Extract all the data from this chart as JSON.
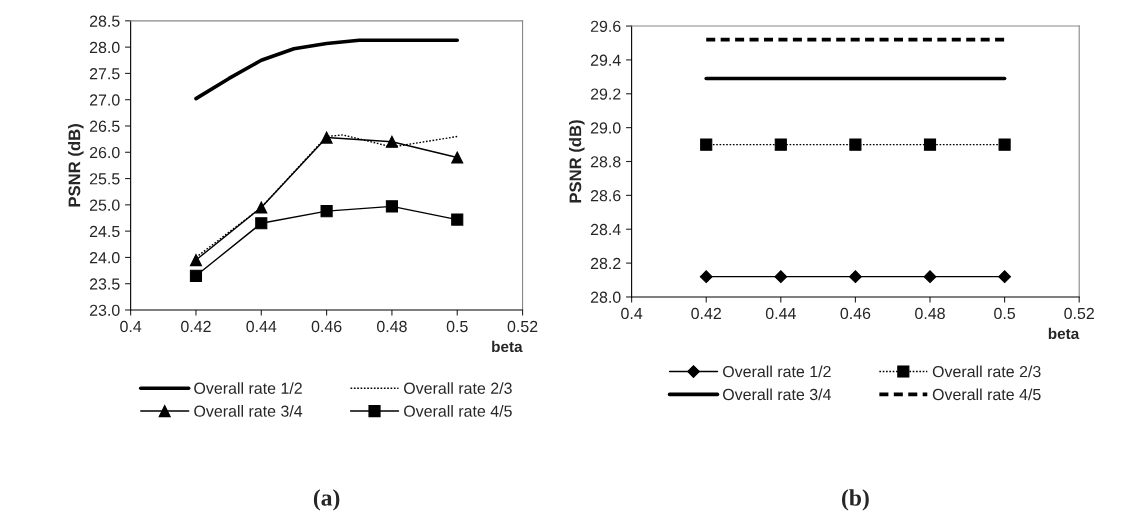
{
  "chart_data": [
    {
      "type": "line",
      "xlabel": "beta",
      "ylabel": "PSNR (dB)",
      "xlim": [
        0.4,
        0.52
      ],
      "xticks": [
        0.4,
        0.42,
        0.44,
        0.46,
        0.48,
        0.5,
        0.52
      ],
      "ylim": [
        23.0,
        28.5
      ],
      "yticks": [
        {
          "value": 23.0,
          "label": "23.0"
        },
        23.5,
        {
          "value": 24.0,
          "label": "24.0"
        },
        24.5,
        {
          "value": 25.0,
          "label": "25.0"
        },
        25.5,
        {
          "value": 26.0,
          "label": "26.0"
        },
        26.5,
        {
          "value": 27.0,
          "label": "27.0"
        },
        27.5,
        {
          "value": 28.0,
          "label": "28.0"
        },
        28.5
      ],
      "grid": false,
      "legend": "bottom",
      "annotations": [
        "(a)"
      ],
      "series": [
        {
          "name": "Overall rate 1/2",
          "color": "#000000",
          "marker": "none",
          "line_style": "solid",
          "x": [
            0.42,
            0.43,
            0.44,
            0.45,
            0.46,
            0.47,
            0.48,
            0.5
          ],
          "values": [
            27.02,
            27.4,
            27.75,
            27.97,
            28.07,
            28.13,
            28.13,
            28.13
          ]
        },
        {
          "name": "Overall rate 2/3",
          "color": "#000000",
          "marker": "none",
          "line_style": "dotted",
          "x": [
            0.42,
            0.44,
            0.46,
            0.465,
            0.48,
            0.49,
            0.5
          ],
          "values": [
            24.0,
            24.95,
            26.3,
            26.33,
            26.1,
            26.2,
            26.3
          ]
        },
        {
          "name": "Overall rate 3/4",
          "color": "#000000",
          "marker": "triangle",
          "line_style": "solid",
          "x": [
            0.42,
            0.44,
            0.46,
            0.48,
            0.5
          ],
          "values": [
            23.95,
            24.95,
            26.28,
            26.2,
            25.9
          ]
        },
        {
          "name": "Overall rate 4/5",
          "color": "#000000",
          "marker": "square",
          "line_style": "solid",
          "x": [
            0.42,
            0.44,
            0.46,
            0.48,
            0.5
          ],
          "values": [
            23.65,
            24.65,
            24.88,
            24.97,
            24.72
          ]
        }
      ]
    },
    {
      "type": "line",
      "xlabel": "beta",
      "ylabel": "PSNR (dB)",
      "xlim": [
        0.4,
        0.52
      ],
      "xticks": [
        0.4,
        0.42,
        0.44,
        0.46,
        0.48,
        0.5,
        0.52
      ],
      "ylim": [
        28.0,
        29.6
      ],
      "yticks": [
        {
          "value": 28.0,
          "label": "28.0"
        },
        28.2,
        28.4,
        28.6,
        28.8,
        {
          "value": 29.0,
          "label": "29.0"
        },
        29.2,
        29.4,
        29.6
      ],
      "grid": false,
      "legend": "bottom",
      "annotations": [
        "(b)"
      ],
      "series": [
        {
          "name": "Overall rate 1/2",
          "color": "#000000",
          "marker": "diamond",
          "line_style": "solid",
          "x": [
            0.42,
            0.44,
            0.46,
            0.48,
            0.5
          ],
          "values": [
            28.12,
            28.12,
            28.12,
            28.12,
            28.12
          ]
        },
        {
          "name": "Overall rate 2/3",
          "color": "#000000",
          "marker": "square",
          "line_style": "dotted",
          "x": [
            0.42,
            0.44,
            0.46,
            0.48,
            0.5
          ],
          "values": [
            28.9,
            28.9,
            28.9,
            28.9,
            28.9
          ]
        },
        {
          "name": "Overall rate 3/4",
          "color": "#000000",
          "marker": "none",
          "line_style": "solid",
          "x": [
            0.42,
            0.44,
            0.46,
            0.48,
            0.5
          ],
          "values": [
            29.29,
            29.29,
            29.29,
            29.29,
            29.29
          ]
        },
        {
          "name": "Overall rate 4/5",
          "color": "#000000",
          "marker": "none",
          "line_style": "dashed",
          "x": [
            0.42,
            0.44,
            0.46,
            0.48,
            0.5
          ],
          "values": [
            29.52,
            29.52,
            29.52,
            29.52,
            29.52
          ]
        }
      ]
    }
  ]
}
